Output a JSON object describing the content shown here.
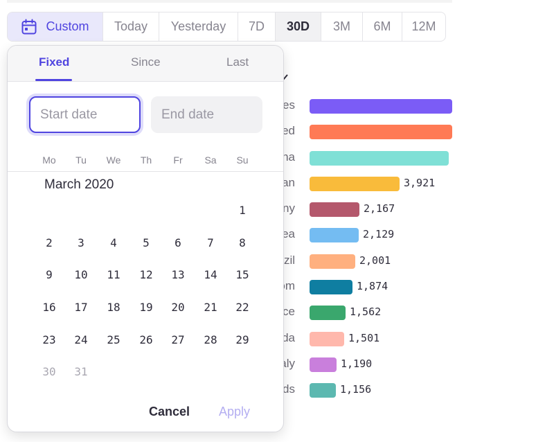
{
  "range_bar": {
    "custom_label": "Custom",
    "options": [
      "Today",
      "Yesterday",
      "7D",
      "30D",
      "3M",
      "6M",
      "12M"
    ],
    "active": "30D",
    "accent": "#4f44e0"
  },
  "picker": {
    "tabs": [
      "Fixed",
      "Since",
      "Last"
    ],
    "active_tab": "Fixed",
    "start_placeholder": "Start date",
    "end_placeholder": "End date",
    "weekdays": [
      "Mo",
      "Tu",
      "We",
      "Th",
      "Fr",
      "Sa",
      "Su"
    ],
    "month_label": "March 2020",
    "weeks": [
      [
        "",
        "",
        "",
        "",
        "",
        "",
        "1"
      ],
      [
        "2",
        "3",
        "4",
        "5",
        "6",
        "7",
        "8"
      ],
      [
        "9",
        "10",
        "11",
        "12",
        "13",
        "14",
        "15"
      ],
      [
        "16",
        "17",
        "18",
        "19",
        "20",
        "21",
        "22"
      ],
      [
        "23",
        "24",
        "25",
        "26",
        "27",
        "28",
        "29"
      ],
      [
        "30",
        "31",
        "",
        "",
        "",
        "",
        ""
      ]
    ],
    "dimmed_days": [
      "30",
      "31"
    ],
    "cancel_label": "Cancel",
    "apply_label": "Apply"
  },
  "chart_data": {
    "type": "bar",
    "orientation": "horizontal",
    "categories": [
      "es",
      "ed",
      "na",
      "an",
      "ny",
      "ea",
      "zil",
      "om",
      "ce",
      "da",
      "aly",
      "ds"
    ],
    "values": [
      null,
      null,
      null,
      3921,
      2167,
      2129,
      2001,
      1874,
      1562,
      1501,
      1190,
      1156
    ],
    "value_labels": [
      "",
      "",
      "",
      "3,921",
      "2,167",
      "2,129",
      "2,001",
      "1,874",
      "1,562",
      "1,501",
      "1,190",
      "1,156"
    ],
    "colors": [
      "#7b5cf6",
      "#ff7a55",
      "#7fe0d6",
      "#f9bb3b",
      "#b4586c",
      "#74bcf2",
      "#ffb07f",
      "#0f7ea1",
      "#3aa76d",
      "#ffb8ac",
      "#c97fdc",
      "#5cb8b0"
    ]
  }
}
